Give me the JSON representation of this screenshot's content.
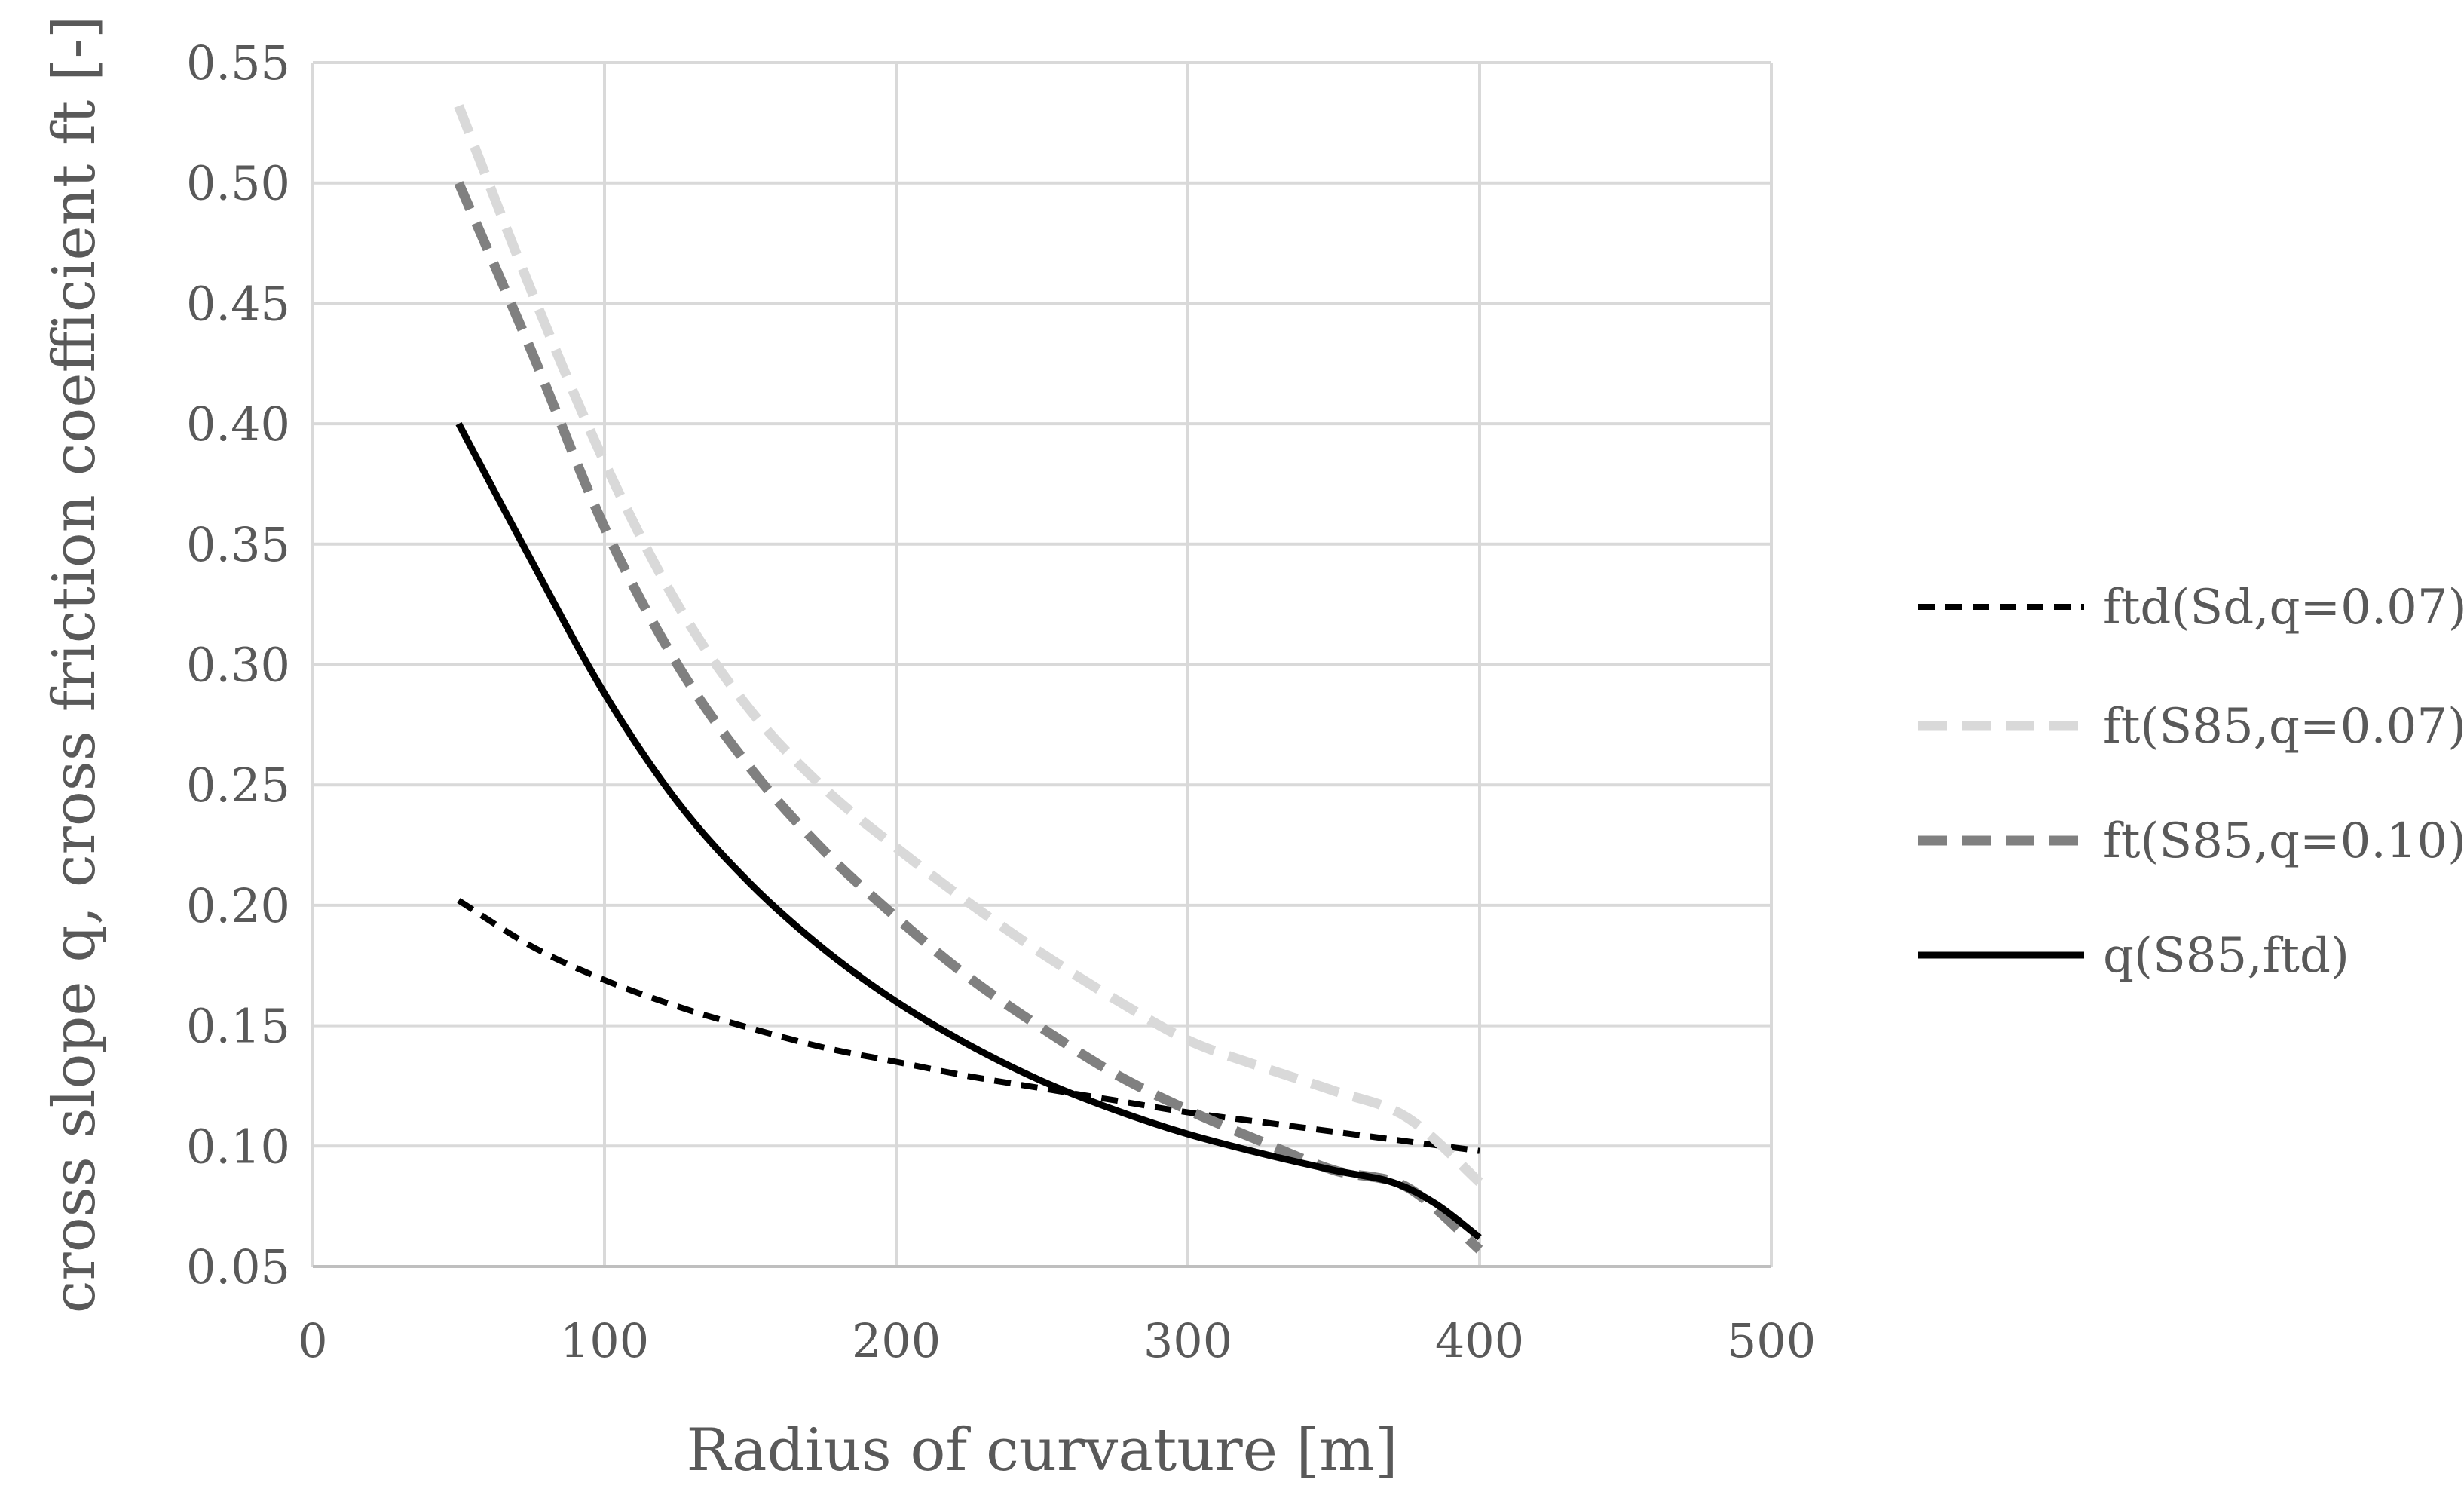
{
  "chart_data": {
    "type": "line",
    "title": "",
    "xlabel": "Radius of curvature [m]",
    "ylabel": "cross slope q, cross friction coefficient ft [-]",
    "xlim": [
      0,
      500
    ],
    "ylim": [
      0.05,
      0.55
    ],
    "x_ticks": [
      0,
      100,
      200,
      300,
      400,
      500
    ],
    "x_tick_labels": [
      "0",
      "100",
      "200",
      "300",
      "400",
      "500"
    ],
    "y_ticks": [
      0.05,
      0.1,
      0.15,
      0.2,
      0.25,
      0.3,
      0.35,
      0.4,
      0.45,
      0.5,
      0.55
    ],
    "y_tick_labels": [
      "0.05",
      "0.10",
      "0.15",
      "0.20",
      "0.25",
      "0.30",
      "0.35",
      "0.40",
      "0.45",
      "0.50",
      "0.55"
    ],
    "grid": true,
    "legend_position": "right",
    "series": [
      {
        "name": "ftd(Sd,q=0.07)",
        "color": "#000000",
        "dash": "dashed",
        "x": [
          50,
          75,
          100,
          125,
          150,
          175,
          200,
          225,
          250,
          275,
          300,
          325,
          350,
          375,
          400
        ],
        "y": [
          0.202,
          0.183,
          0.169,
          0.158,
          0.149,
          0.141,
          0.135,
          0.129,
          0.124,
          0.119,
          0.114,
          0.11,
          0.106,
          0.102,
          0.098
        ]
      },
      {
        "name": "ft(S85,q=0.07)",
        "color": "#d9d9d9",
        "dash": "dashed",
        "x": [
          50,
          75,
          100,
          125,
          150,
          175,
          200,
          225,
          250,
          275,
          300,
          325,
          350,
          375,
          400
        ],
        "y": [
          0.532,
          0.455,
          0.384,
          0.325,
          0.281,
          0.249,
          0.224,
          0.201,
          0.18,
          0.161,
          0.144,
          0.133,
          0.123,
          0.112,
          0.085
        ]
      },
      {
        "name": "ft(S85,q=0.10)",
        "color": "#808080",
        "dash": "dashed",
        "x": [
          50,
          75,
          100,
          125,
          150,
          175,
          200,
          225,
          250,
          275,
          300,
          325,
          350,
          375,
          400
        ],
        "y": [
          0.5,
          0.43,
          0.357,
          0.3,
          0.257,
          0.223,
          0.195,
          0.17,
          0.149,
          0.13,
          0.115,
          0.102,
          0.09,
          0.083,
          0.057
        ]
      },
      {
        "name": "q(S85,ftd)",
        "color": "#000000",
        "dash": "solid",
        "x": [
          50,
          75,
          100,
          125,
          150,
          175,
          200,
          225,
          250,
          275,
          300,
          325,
          350,
          370,
          385,
          400
        ],
        "y": [
          0.4,
          0.343,
          0.288,
          0.243,
          0.209,
          0.182,
          0.16,
          0.142,
          0.127,
          0.115,
          0.105,
          0.097,
          0.09,
          0.085,
          0.076,
          0.062
        ]
      }
    ]
  }
}
